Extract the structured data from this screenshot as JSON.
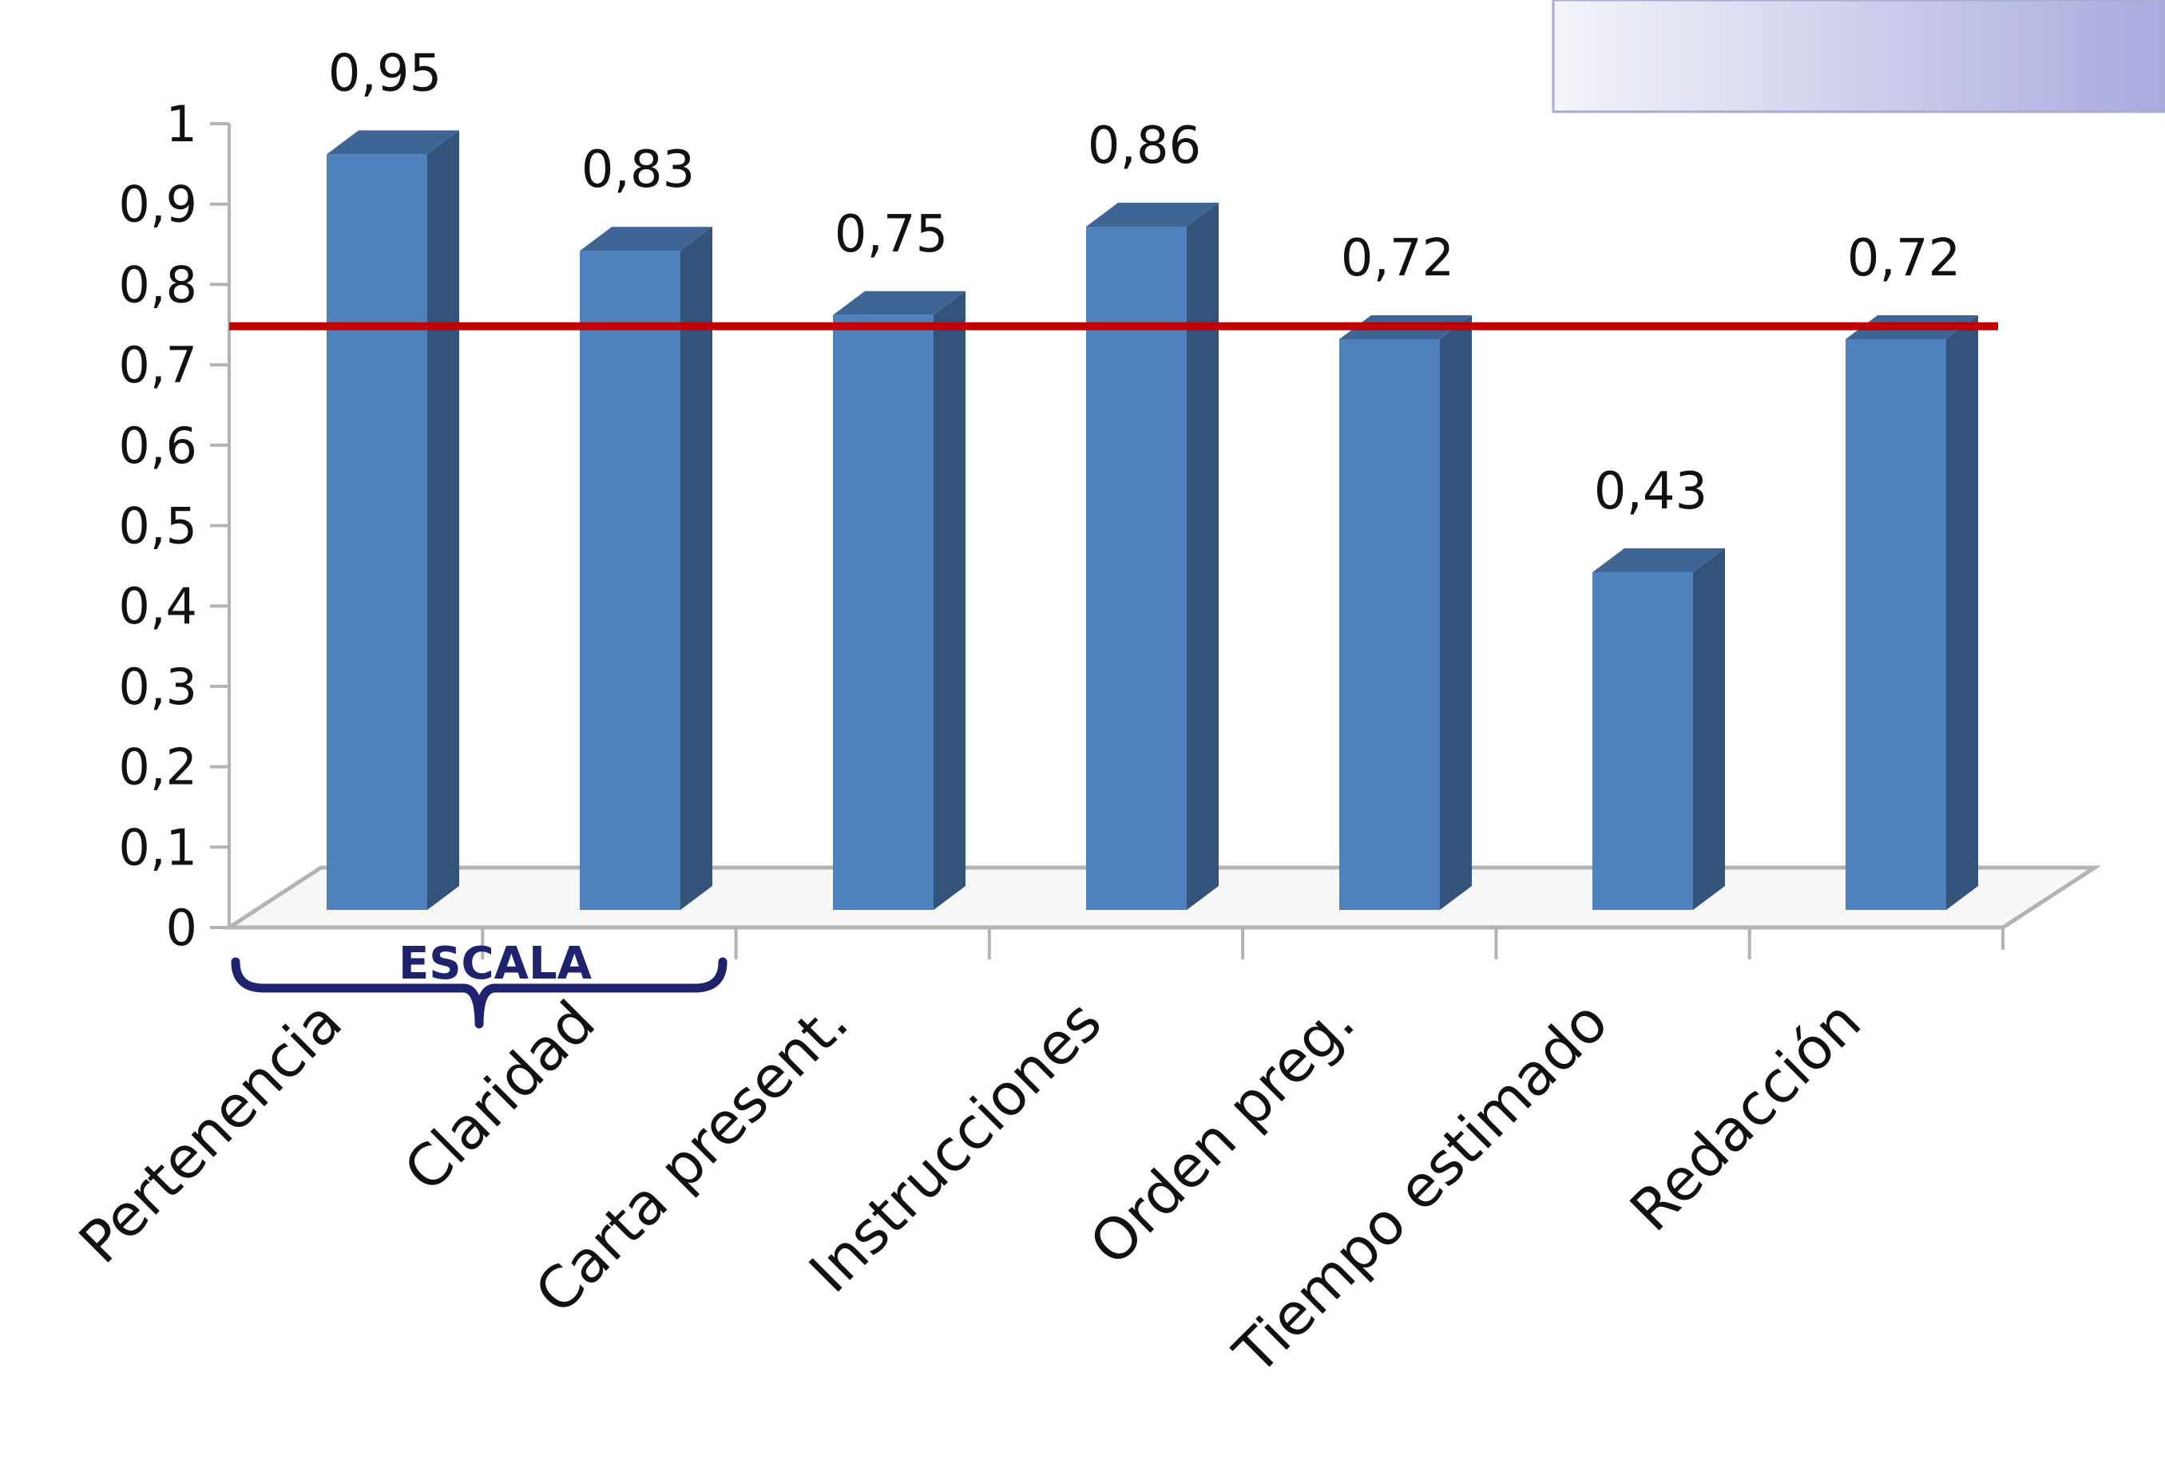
{
  "chart_data": {
    "type": "bar",
    "categories": [
      "Pertenencia",
      "Claridad",
      "Carta present.",
      "Instrucciones",
      "Orden preg.",
      "Tiempo estimado",
      "Redacción"
    ],
    "values": [
      0.95,
      0.83,
      0.75,
      0.86,
      0.72,
      0.43,
      0.72
    ],
    "data_labels": [
      "0,95",
      "0,83",
      "0,75",
      "0,86",
      "0,72",
      "0,43",
      "0,72"
    ],
    "y_ticks": [
      "0",
      "0,1",
      "0,2",
      "0,3",
      "0,4",
      "0,5",
      "0,6",
      "0,7",
      "0,8",
      "0,9",
      "1"
    ],
    "ylim": [
      0,
      1
    ],
    "reference_line": 0.75,
    "bracket": {
      "label": "ESCALA",
      "categories": [
        "Pertenencia",
        "Claridad"
      ]
    },
    "colors": {
      "bar_front": "#4f81bd",
      "bar_side": "#33537a",
      "bar_top": "#3f6595",
      "reference_line": "#c00000",
      "bracket": "#1f236e",
      "axis": "#b3b3b3"
    },
    "style": "3d-column"
  }
}
